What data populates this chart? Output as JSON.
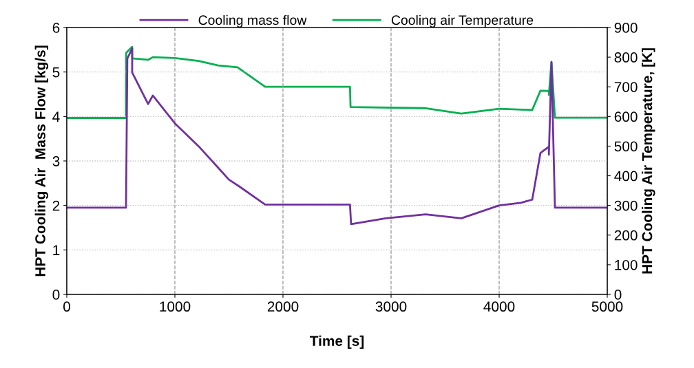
{
  "chart_data": {
    "type": "line",
    "xlabel": "Time [s]",
    "ylabel": "HPT Cooling Air  Mass Flow [kg/s]",
    "y2label": "HPT Cooling Air Temperature, [K]",
    "xlim": [
      0,
      5000
    ],
    "xticks": [
      0,
      1000,
      2000,
      3000,
      4000,
      5000
    ],
    "ylim": [
      0,
      6
    ],
    "yticks": [
      0,
      1,
      2,
      3,
      4,
      5,
      6
    ],
    "y2lim": [
      0,
      900
    ],
    "y2ticks": [
      0,
      100,
      200,
      300,
      400,
      500,
      600,
      700,
      800,
      900
    ],
    "grid": true,
    "legend": "top",
    "marker": "none",
    "line_style": "solid",
    "series": [
      {
        "name": "Cooling mass flow",
        "color": "#7030a0",
        "x": [
          0,
          548,
          560,
          605,
          605,
          752,
          796,
          1006,
          1220,
          1400,
          1500,
          1600,
          1835,
          2620,
          2630,
          2950,
          3320,
          3650,
          4000,
          4200,
          4306,
          4382,
          4459,
          4460,
          4484,
          4516,
          5000
        ],
        "values": [
          1.95,
          1.95,
          5.3,
          5.53,
          4.99,
          4.28,
          4.47,
          3.83,
          3.33,
          2.85,
          2.58,
          2.42,
          2.02,
          2.02,
          1.58,
          1.71,
          1.8,
          1.71,
          2.0,
          2.06,
          2.13,
          3.18,
          3.32,
          3.14,
          5.22,
          1.95,
          1.95
        ]
      },
      {
        "name": "Cooling air Temperature",
        "color": "#00b050",
        "axis": "y2",
        "x": [
          0,
          548,
          550,
          605,
          605,
          752,
          796,
          1000,
          1220,
          1400,
          1580,
          1835,
          2620,
          2625,
          3320,
          3650,
          4000,
          4306,
          4382,
          4459,
          4460,
          4484,
          4516,
          5000
        ],
        "values": [
          595,
          595,
          815,
          835,
          796,
          791,
          800,
          797,
          787,
          772,
          766,
          700,
          700,
          632,
          628,
          610,
          626,
          622,
          687,
          686,
          673,
          784,
          596,
          596
        ]
      }
    ]
  }
}
